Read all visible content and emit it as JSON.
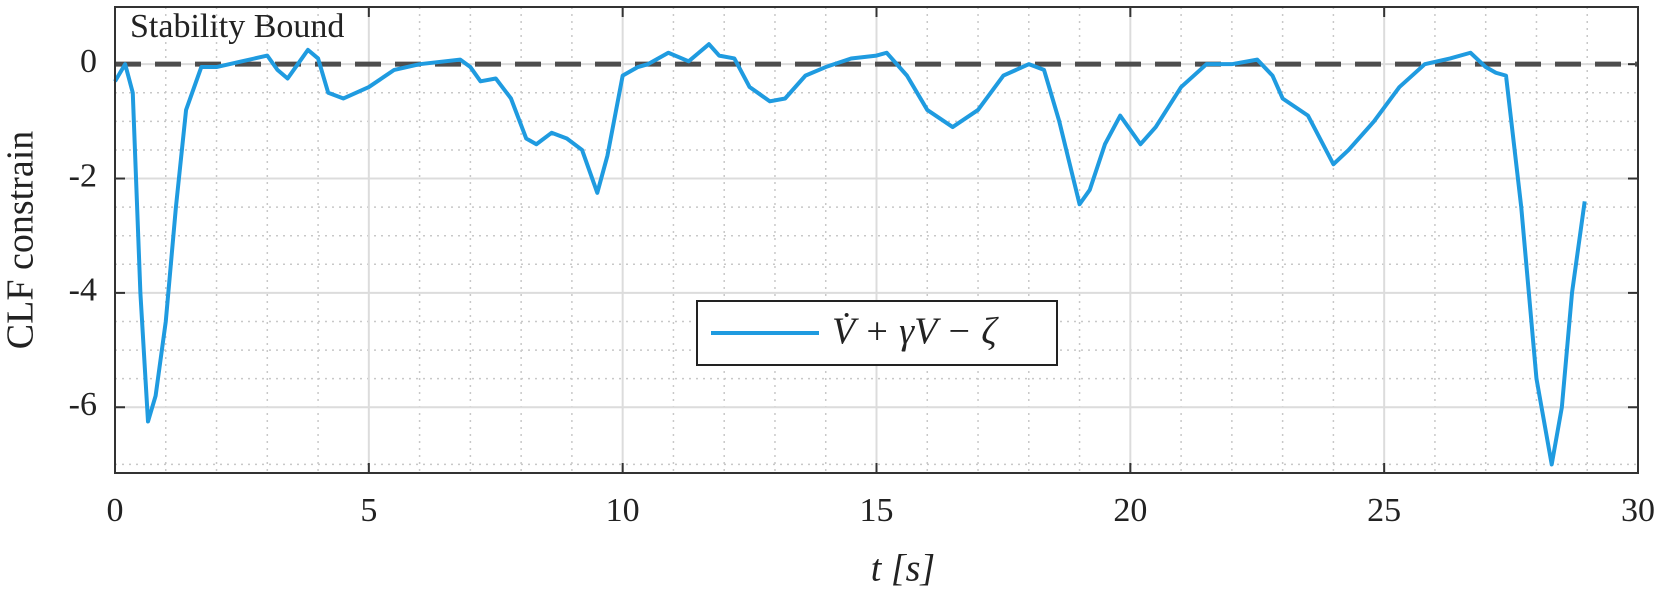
{
  "chart_data": {
    "type": "line",
    "xlabel": "t [s]",
    "ylabel": "CLF constrain",
    "xlim": [
      0,
      30
    ],
    "xticks": [
      0,
      5,
      10,
      15,
      20,
      25,
      30
    ],
    "ylim": [
      -7.15,
      1
    ],
    "yticks": [
      -6,
      -4,
      -2,
      0
    ],
    "grid": true,
    "minor_grid": true,
    "legend": "center",
    "reference_line": {
      "value": 0,
      "label": "Stability Bound",
      "color": "#4d4d4d"
    },
    "series": [
      {
        "name": "V̇ + γV − ζ",
        "color": "#1f9be0",
        "x": [
          0,
          0.2,
          0.35,
          0.5,
          0.65,
          0.8,
          1.0,
          1.2,
          1.4,
          1.7,
          2.0,
          2.5,
          3.0,
          3.2,
          3.4,
          3.6,
          3.8,
          4.0,
          4.2,
          4.5,
          5.0,
          5.5,
          6.0,
          6.5,
          6.8,
          7.0,
          7.2,
          7.5,
          7.8,
          8.1,
          8.3,
          8.6,
          8.9,
          9.2,
          9.5,
          9.7,
          10.0,
          10.3,
          10.5,
          10.9,
          11.3,
          11.5,
          11.7,
          11.9,
          12.2,
          12.5,
          12.9,
          13.2,
          13.6,
          14.0,
          14.5,
          15.0,
          15.2,
          15.6,
          16.0,
          16.5,
          17.0,
          17.5,
          18.0,
          18.3,
          18.6,
          19.0,
          19.2,
          19.5,
          19.8,
          20.2,
          20.5,
          21.0,
          21.5,
          22.0,
          22.5,
          22.8,
          23.0,
          23.5,
          24.0,
          24.3,
          24.8,
          25.3,
          25.8,
          26.3,
          26.7,
          27.0,
          27.2,
          27.4,
          27.7,
          28.0,
          28.3,
          28.5,
          28.7,
          28.95
        ],
        "values": [
          -0.3,
          0.0,
          -0.5,
          -4,
          -6.25,
          -5.8,
          -4.5,
          -2.5,
          -0.8,
          -0.05,
          -0.05,
          0.05,
          0.15,
          -0.1,
          -0.25,
          0.0,
          0.25,
          0.1,
          -0.5,
          -0.6,
          -0.4,
          -0.1,
          0.0,
          0.05,
          0.08,
          -0.05,
          -0.3,
          -0.25,
          -0.6,
          -1.3,
          -1.4,
          -1.2,
          -1.3,
          -1.5,
          -2.25,
          -1.6,
          -0.2,
          -0.05,
          0.0,
          0.2,
          0.05,
          0.2,
          0.35,
          0.15,
          0.1,
          -0.4,
          -0.65,
          -0.6,
          -0.2,
          -0.05,
          0.1,
          0.15,
          0.2,
          -0.2,
          -0.8,
          -1.1,
          -0.8,
          -0.2,
          0.0,
          -0.1,
          -1.0,
          -2.45,
          -2.2,
          -1.4,
          -0.9,
          -1.4,
          -1.1,
          -0.4,
          0.0,
          0.0,
          0.08,
          -0.2,
          -0.6,
          -0.9,
          -1.75,
          -1.5,
          -1.0,
          -0.4,
          0.0,
          0.1,
          0.2,
          -0.05,
          -0.15,
          -0.2,
          -2.5,
          -5.5,
          -7.0,
          -6.0,
          -4.0,
          -2.4
        ]
      }
    ]
  }
}
